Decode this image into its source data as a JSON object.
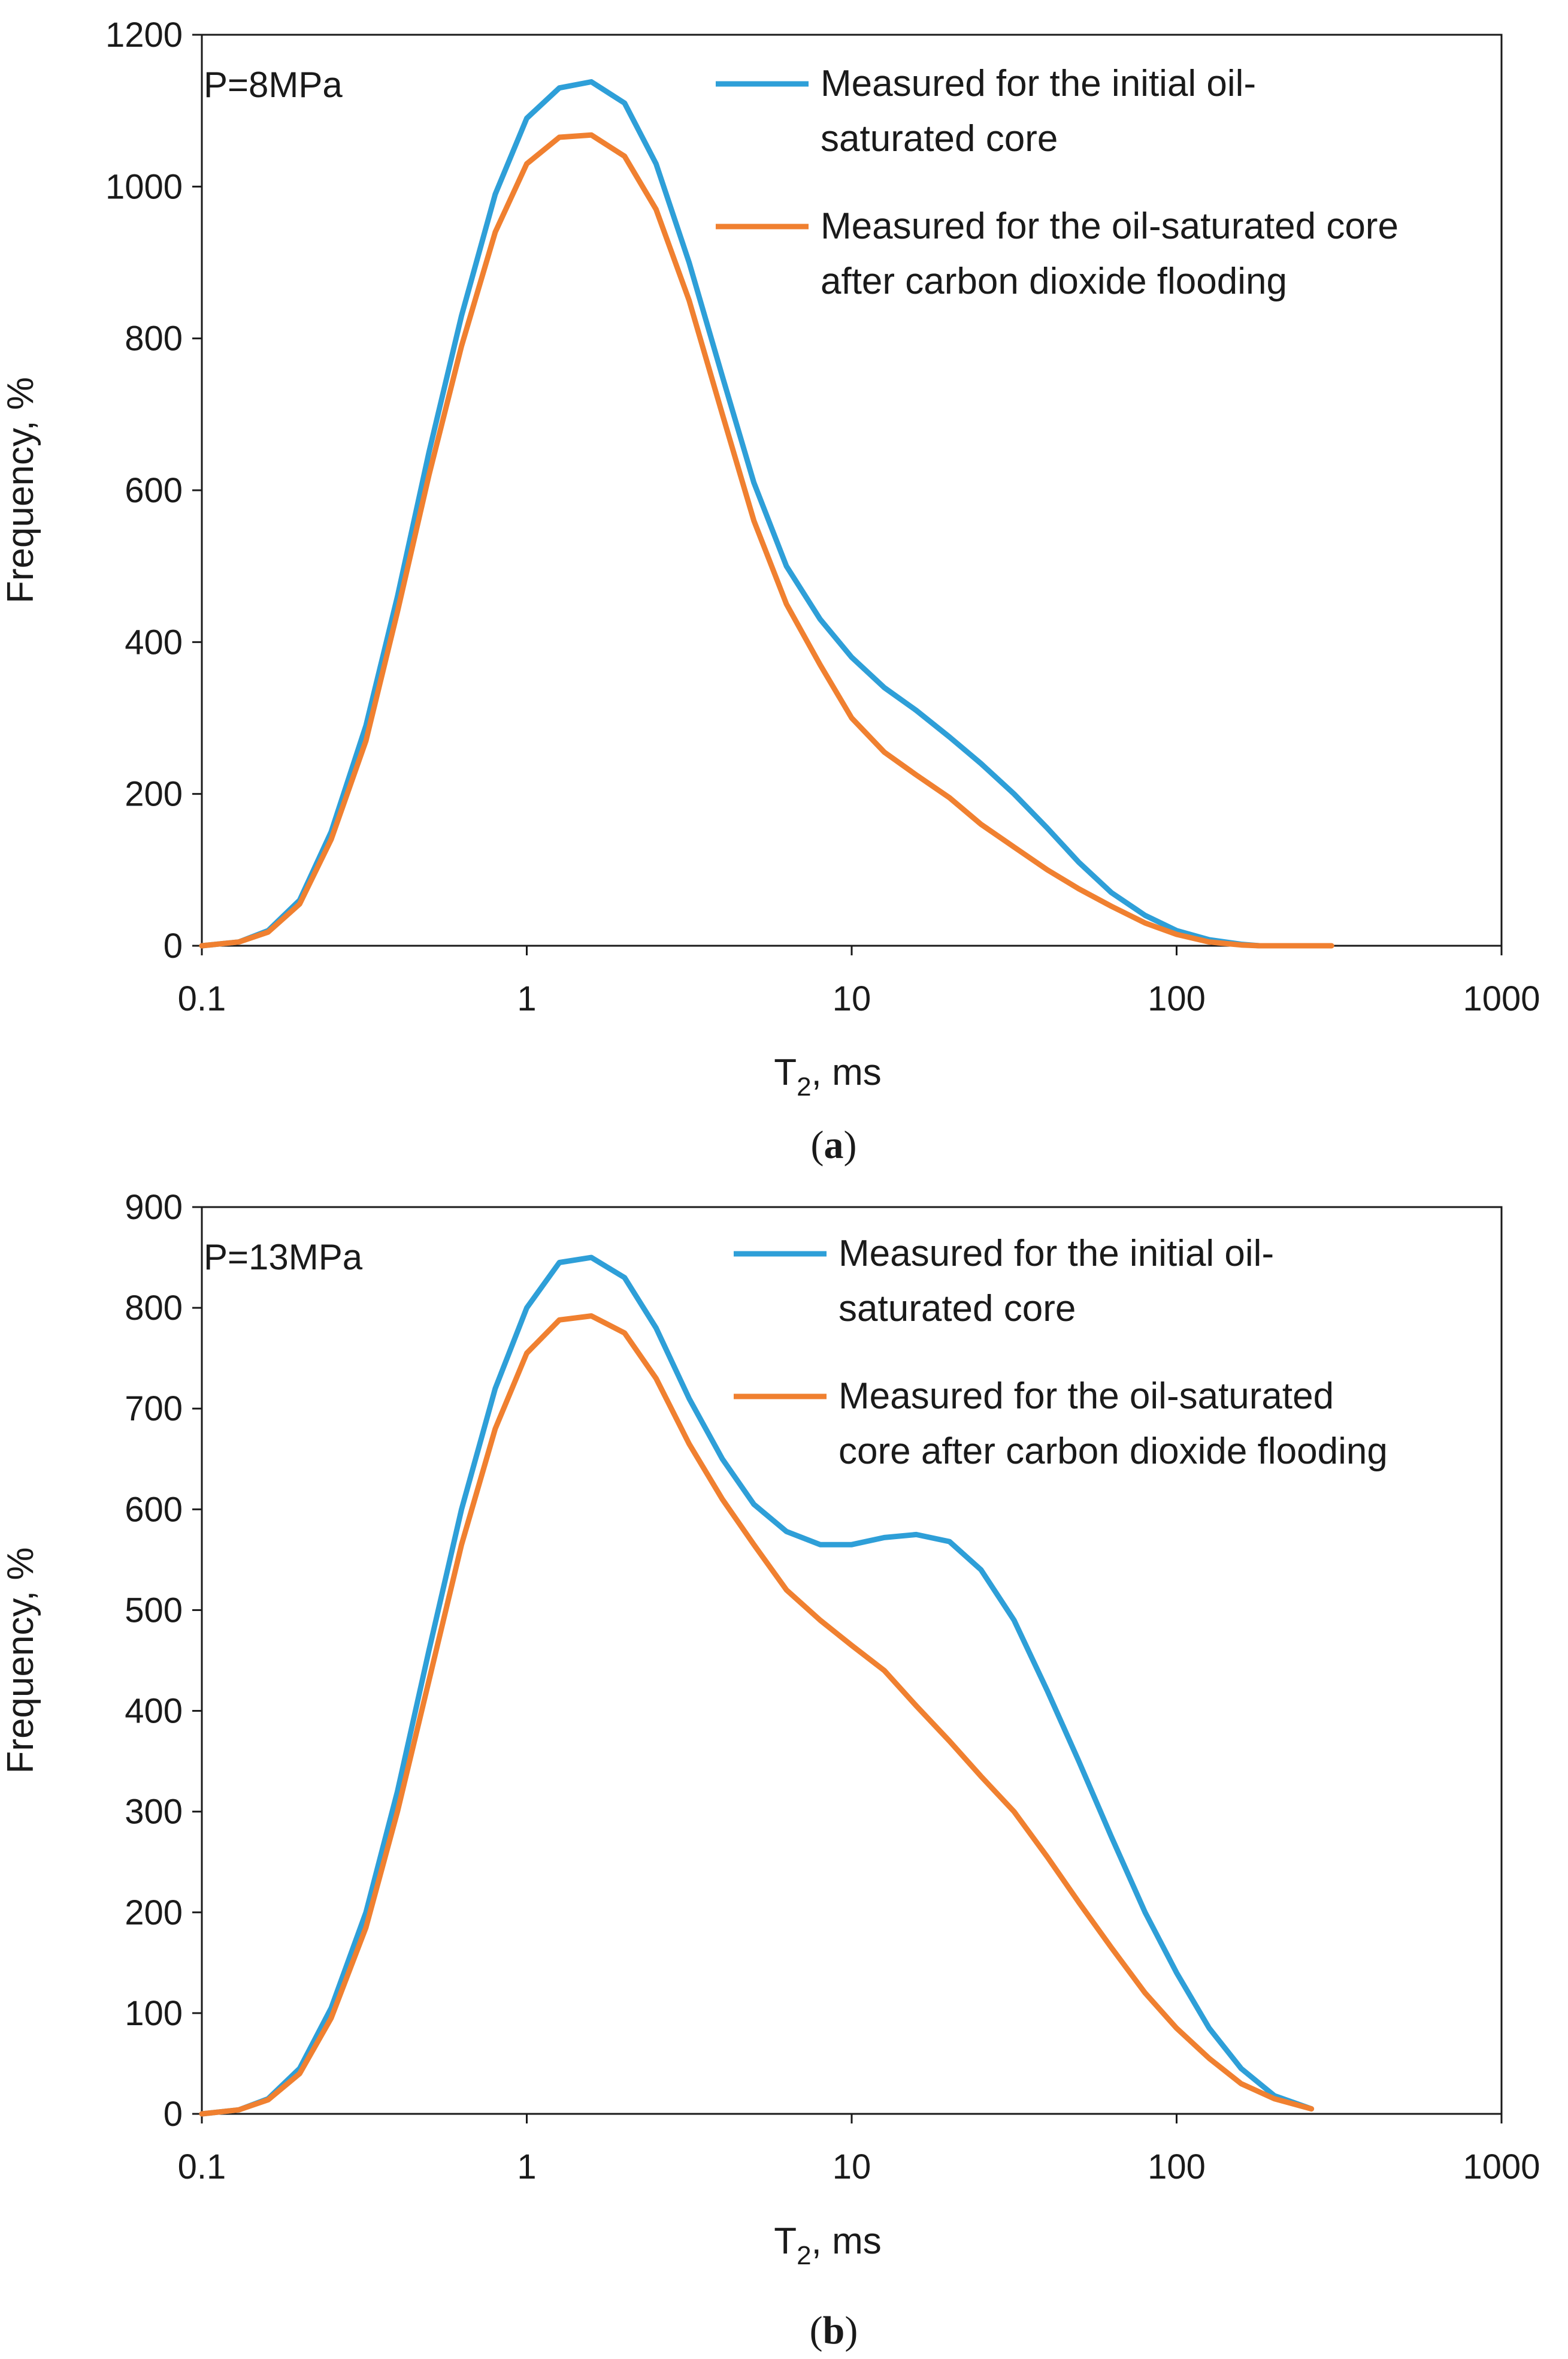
{
  "chart_data": [
    {
      "type": "line",
      "panel": "a",
      "caption_letter": "a",
      "annotation": "P=8MPa",
      "title": "",
      "xlabel_main": "T",
      "xlabel_sub": "2",
      "xlabel_unit": ", ms",
      "ylabel": "Frequency, %",
      "xscale": "log",
      "xlim": [
        0.1,
        1000
      ],
      "ylim": [
        0,
        1200
      ],
      "xticks": [
        0.1,
        1,
        10,
        100,
        1000
      ],
      "xtick_labels": [
        "0.1",
        "1",
        "10",
        "100",
        "1000"
      ],
      "yticks": [
        0,
        200,
        400,
        600,
        800,
        1000,
        1200
      ],
      "ytick_labels": [
        "0",
        "200",
        "400",
        "600",
        "800",
        "1000",
        "1200"
      ],
      "grid": false,
      "legend_position": "top-right",
      "series": [
        {
          "name_lines": [
            "Measured for the initial oil-",
            "saturated core"
          ],
          "color": "#2e9fd8",
          "x": [
            0.1,
            0.13,
            0.16,
            0.2,
            0.25,
            0.32,
            0.4,
            0.5,
            0.63,
            0.8,
            1.0,
            1.26,
            1.58,
            2.0,
            2.5,
            3.16,
            4.0,
            5.0,
            6.3,
            8.0,
            10,
            12.6,
            15.8,
            20,
            25,
            31.6,
            40,
            50,
            63,
            80,
            100,
            126,
            158,
            180
          ],
          "y": [
            0,
            5,
            20,
            60,
            150,
            290,
            460,
            650,
            830,
            990,
            1090,
            1130,
            1138,
            1110,
            1030,
            900,
            750,
            610,
            500,
            430,
            380,
            340,
            310,
            275,
            240,
            200,
            155,
            110,
            70,
            40,
            20,
            8,
            2,
            0
          ]
        },
        {
          "name_lines": [
            "Measured for the oil-saturated core",
            "after carbon dioxide flooding"
          ],
          "color": "#f08030",
          "x": [
            0.1,
            0.13,
            0.16,
            0.2,
            0.25,
            0.32,
            0.4,
            0.5,
            0.63,
            0.8,
            1.0,
            1.26,
            1.58,
            2.0,
            2.5,
            3.16,
            4.0,
            5.0,
            6.3,
            8.0,
            10,
            12.6,
            15.8,
            20,
            25,
            31.6,
            40,
            50,
            63,
            80,
            100,
            126,
            158,
            180,
            250,
            300
          ],
          "y": [
            0,
            5,
            18,
            55,
            140,
            270,
            440,
            620,
            790,
            940,
            1030,
            1065,
            1068,
            1040,
            970,
            850,
            700,
            560,
            450,
            370,
            300,
            255,
            225,
            195,
            160,
            130,
            100,
            75,
            52,
            30,
            15,
            5,
            1,
            0,
            0,
            0
          ]
        }
      ]
    },
    {
      "type": "line",
      "panel": "b",
      "caption_letter": "b",
      "annotation": "P=13MPa",
      "title": "",
      "xlabel_main": "T",
      "xlabel_sub": "2",
      "xlabel_unit": ", ms",
      "ylabel": "Frequency, %",
      "xscale": "log",
      "xlim": [
        0.1,
        1000
      ],
      "ylim": [
        0,
        900
      ],
      "xticks": [
        0.1,
        1,
        10,
        100,
        1000
      ],
      "xtick_labels": [
        "0.1",
        "1",
        "10",
        "100",
        "1000"
      ],
      "yticks": [
        0,
        100,
        200,
        300,
        400,
        500,
        600,
        700,
        800,
        900
      ],
      "ytick_labels": [
        "0",
        "100",
        "200",
        "300",
        "400",
        "500",
        "600",
        "700",
        "800",
        "900"
      ],
      "grid": false,
      "legend_position": "top-right",
      "series": [
        {
          "name_lines": [
            "Measured for the initial oil-",
            "saturated core"
          ],
          "color": "#2e9fd8",
          "x": [
            0.1,
            0.13,
            0.16,
            0.2,
            0.25,
            0.32,
            0.4,
            0.5,
            0.63,
            0.8,
            1.0,
            1.26,
            1.58,
            2.0,
            2.5,
            3.16,
            4.0,
            5.0,
            6.3,
            8.0,
            10,
            12.6,
            15.8,
            20,
            25,
            31.6,
            40,
            50,
            63,
            80,
            100,
            126,
            158,
            200,
            260
          ],
          "y": [
            0,
            4,
            15,
            45,
            105,
            200,
            320,
            460,
            600,
            720,
            800,
            845,
            850,
            830,
            780,
            710,
            650,
            605,
            578,
            565,
            565,
            572,
            575,
            568,
            540,
            490,
            420,
            350,
            275,
            200,
            140,
            85,
            45,
            18,
            5
          ]
        },
        {
          "name_lines": [
            "Measured for the oil-saturated",
            "core after carbon dioxide flooding"
          ],
          "color": "#f08030",
          "x": [
            0.1,
            0.13,
            0.16,
            0.2,
            0.25,
            0.32,
            0.4,
            0.5,
            0.63,
            0.8,
            1.0,
            1.26,
            1.58,
            2.0,
            2.5,
            3.16,
            4.0,
            5.0,
            6.3,
            8.0,
            10,
            12.6,
            15.8,
            20,
            25,
            31.6,
            40,
            50,
            63,
            80,
            100,
            126,
            158,
            200,
            260
          ],
          "y": [
            0,
            4,
            14,
            40,
            95,
            185,
            300,
            430,
            565,
            680,
            755,
            788,
            792,
            775,
            730,
            665,
            610,
            565,
            520,
            490,
            465,
            440,
            405,
            370,
            335,
            300,
            255,
            210,
            165,
            120,
            85,
            55,
            30,
            15,
            5
          ]
        }
      ]
    }
  ]
}
